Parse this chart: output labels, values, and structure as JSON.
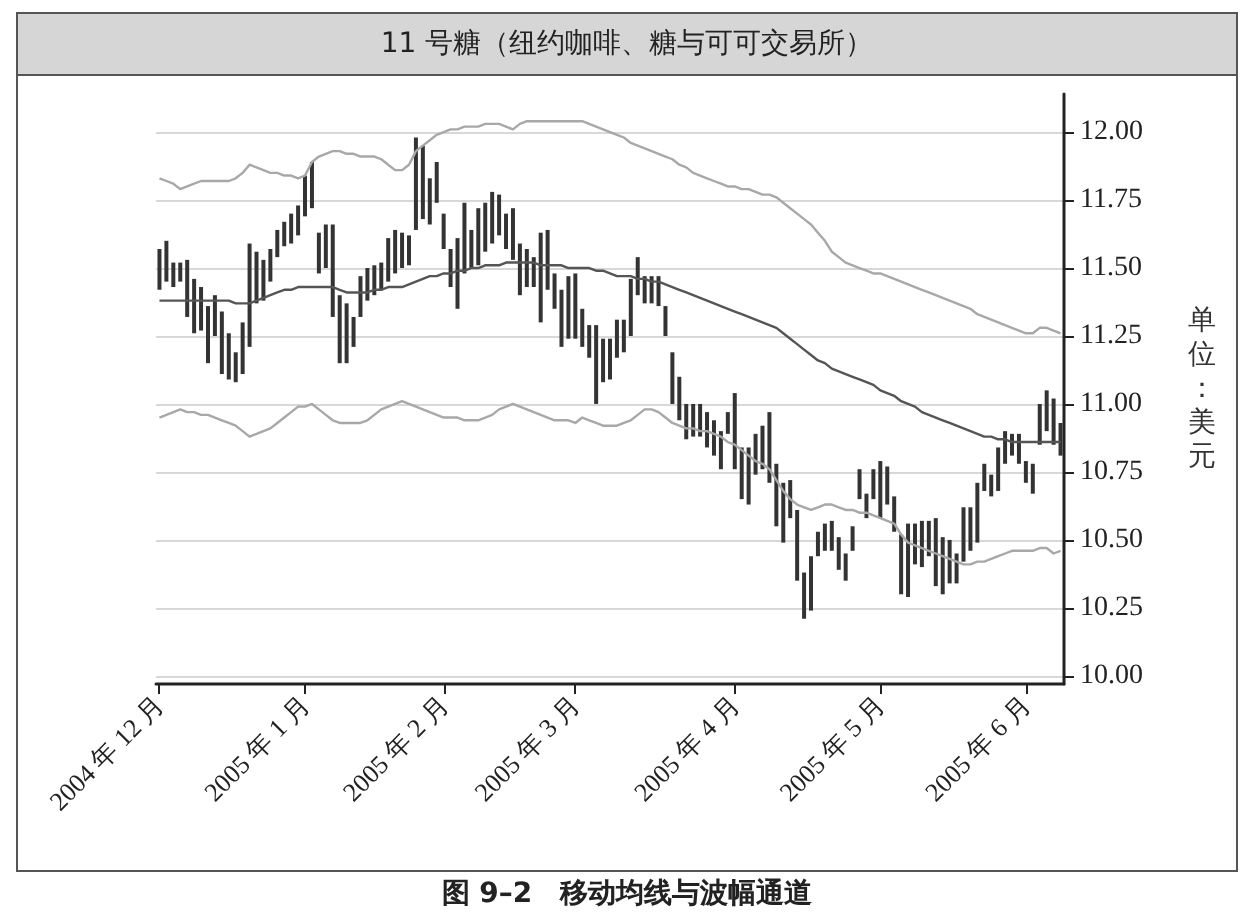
{
  "chart_data": {
    "type": "bar",
    "title": "11 号糖（纽约咖啡、糖与可可交易所）",
    "ylabel": "单位：美元",
    "annotations": [
      "图 9–2　移动均线与波幅通道"
    ],
    "categories": [
      "2004 年 12 月",
      null,
      null,
      null,
      null,
      null,
      null,
      null,
      null,
      null,
      null,
      null,
      null,
      null,
      null,
      null,
      null,
      null,
      null,
      null,
      null,
      "2005 年 1 月",
      null,
      null,
      null,
      null,
      null,
      null,
      null,
      null,
      null,
      null,
      null,
      null,
      null,
      null,
      null,
      null,
      null,
      null,
      null,
      "2005 年 2 月",
      null,
      null,
      null,
      null,
      null,
      null,
      null,
      null,
      null,
      null,
      null,
      null,
      null,
      null,
      null,
      null,
      null,
      null,
      "2005 年 3 月",
      null,
      null,
      null,
      null,
      null,
      null,
      null,
      null,
      null,
      null,
      null,
      null,
      null,
      null,
      null,
      null,
      null,
      null,
      null,
      null,
      null,
      null,
      "2005 年 4 月",
      null,
      null,
      null,
      null,
      null,
      null,
      null,
      null,
      null,
      null,
      null,
      null,
      null,
      null,
      null,
      null,
      null,
      null,
      null,
      null,
      "2005 年 5 月",
      null,
      null,
      null,
      null,
      null,
      null,
      null,
      null,
      null,
      null,
      null,
      null,
      null,
      null,
      null,
      null,
      null,
      null,
      null,
      null,
      "2005 年 6 月",
      null,
      null,
      null,
      null,
      null
    ],
    "series": [
      {
        "color": "#333333",
        "values": [
          0.15,
          0.15,
          0.09,
          0.07,
          0.21,
          0.2,
          0.16,
          0.21,
          0.15,
          0.23,
          0.17,
          0.11,
          0.19,
          0.38,
          0.19,
          0.15,
          0.12,
          0.1,
          0.09,
          0.11,
          0.11,
          0.15,
          0.17,
          0.15,
          0.16,
          0.34,
          0.25,
          0.22,
          0.11,
          0.15,
          0.12,
          0.11,
          0.1,
          0.16,
          0.16,
          0.13,
          0.11,
          0.34,
          0.27,
          0.17,
          0.15,
          0.13,
          0.14,
          0.26,
          0.26,
          0.14,
          0.21,
          0.18,
          0.19,
          0.15,
          0.13,
          0.19,
          0.19,
          0.14,
          0.11,
          0.33,
          0.22,
          0.13,
          0.21,
          0.23,
          0.24,
          0.14,
          0.12,
          0.29,
          0.16,
          0.15,
          0.14,
          0.12,
          0.21,
          0.14,
          0.1,
          0.1,
          0.11,
          0.11,
          0.19,
          0.16,
          0.13,
          0.12,
          0.12,
          0.13,
          0.13,
          0.14,
          0.08,
          0.28,
          0.19,
          0.21,
          0.15,
          0.16,
          0.26,
          0.23,
          0.22,
          0.14,
          0.26,
          0.17,
          0.2,
          0.09,
          0.1,
          0.11,
          0.12,
          0.1,
          0.09,
          0.11,
          0.09,
          0.11,
          0.21,
          0.14,
          0.13,
          0.22,
          0.27,
          0.15,
          0.17,
          0.13,
          0.25,
          0.21,
          0.16,
          0.11,
          0.2,
          0.16,
          0.22,
          0.1,
          0.08,
          0.16,
          0.12,
          0.08,
          0.11,
          0.08,
          0.11,
          0.15,
          0.15,
          0.17,
          0.12
        ],
        "base": [
          11.42,
          11.45,
          11.43,
          11.45,
          11.32,
          11.26,
          11.27,
          11.15,
          11.25,
          11.11,
          11.09,
          11.08,
          11.11,
          11.21,
          11.37,
          11.38,
          11.45,
          11.54,
          11.58,
          11.59,
          11.62,
          11.69,
          11.72,
          11.48,
          11.5,
          11.32,
          11.15,
          11.15,
          11.21,
          11.32,
          11.38,
          11.4,
          11.42,
          11.45,
          11.48,
          11.5,
          11.51,
          11.64,
          11.68,
          11.66,
          11.74,
          11.57,
          11.43,
          11.35,
          11.48,
          11.5,
          11.51,
          11.56,
          11.59,
          11.62,
          11.57,
          11.53,
          11.4,
          11.43,
          11.43,
          11.3,
          11.42,
          11.35,
          11.21,
          11.24,
          11.24,
          11.21,
          11.17,
          11.0,
          11.08,
          11.09,
          11.17,
          11.19,
          11.25,
          11.4,
          11.37,
          11.37,
          11.36,
          11.25,
          11.0,
          10.94,
          10.87,
          10.88,
          10.88,
          10.84,
          10.81,
          10.76,
          10.89,
          10.76,
          10.65,
          10.63,
          10.74,
          10.76,
          10.71,
          10.55,
          10.49,
          10.58,
          10.35,
          10.21,
          10.24,
          10.44,
          10.46,
          10.46,
          10.39,
          10.35,
          10.46,
          10.65,
          10.58,
          10.65,
          10.58,
          10.63,
          10.53,
          10.3,
          10.29,
          10.41,
          10.4,
          10.44,
          10.33,
          10.3,
          10.34,
          10.34,
          10.42,
          10.46,
          10.49,
          10.68,
          10.66,
          10.68,
          10.78,
          10.81,
          10.78,
          10.71,
          10.67,
          10.85,
          10.9,
          10.85,
          10.81
        ]
      },
      {
        "type": "line",
        "color": "#555555",
        "values": [
          11.38,
          11.38,
          11.38,
          11.38,
          11.38,
          11.38,
          11.38,
          11.38,
          11.38,
          11.38,
          11.38,
          11.37,
          11.37,
          11.37,
          11.38,
          11.39,
          11.4,
          11.41,
          11.42,
          11.42,
          11.43,
          11.43,
          11.43,
          11.43,
          11.43,
          11.43,
          11.42,
          11.41,
          11.41,
          11.41,
          11.41,
          11.42,
          11.42,
          11.43,
          11.43,
          11.43,
          11.44,
          11.45,
          11.46,
          11.47,
          11.47,
          11.48,
          11.48,
          11.49,
          11.49,
          11.5,
          11.5,
          11.51,
          11.51,
          11.51,
          11.52,
          11.52,
          11.52,
          11.52,
          11.52,
          11.51,
          11.51,
          11.51,
          11.51,
          11.5,
          11.5,
          11.5,
          11.5,
          11.49,
          11.49,
          11.48,
          11.47,
          11.47,
          11.47,
          11.46,
          11.46,
          11.45,
          11.45,
          11.44,
          11.43,
          11.42,
          11.41,
          11.4,
          11.39,
          11.38,
          11.37,
          11.36,
          11.35,
          11.34,
          11.33,
          11.32,
          11.31,
          11.3,
          11.29,
          11.28,
          11.26,
          11.24,
          11.22,
          11.2,
          11.18,
          11.16,
          11.15,
          11.13,
          11.12,
          11.11,
          11.1,
          11.09,
          11.08,
          11.07,
          11.05,
          11.04,
          11.03,
          11.01,
          11.0,
          10.99,
          10.97,
          10.96,
          10.95,
          10.94,
          10.93,
          10.92,
          10.91,
          10.9,
          10.89,
          10.88,
          10.88,
          10.87,
          10.87,
          10.86,
          10.86,
          10.86,
          10.86,
          10.86,
          10.86,
          10.86,
          10.86
        ]
      },
      {
        "type": "line",
        "color": "#a8a8a8",
        "values": [
          11.83,
          11.82,
          11.81,
          11.79,
          11.8,
          11.81,
          11.82,
          11.82,
          11.82,
          11.82,
          11.82,
          11.83,
          11.85,
          11.88,
          11.87,
          11.86,
          11.85,
          11.85,
          11.84,
          11.84,
          11.83,
          11.84,
          11.89,
          11.91,
          11.92,
          11.93,
          11.93,
          11.92,
          11.92,
          11.91,
          11.91,
          11.91,
          11.9,
          11.88,
          11.86,
          11.86,
          11.88,
          11.93,
          11.95,
          11.97,
          11.99,
          12.0,
          12.01,
          12.01,
          12.02,
          12.02,
          12.02,
          12.03,
          12.03,
          12.03,
          12.02,
          12.01,
          12.03,
          12.04,
          12.04,
          12.04,
          12.04,
          12.04,
          12.04,
          12.04,
          12.04,
          12.04,
          12.03,
          12.02,
          12.01,
          12.0,
          11.99,
          11.98,
          11.96,
          11.95,
          11.94,
          11.93,
          11.92,
          11.91,
          11.9,
          11.88,
          11.87,
          11.85,
          11.84,
          11.83,
          11.82,
          11.81,
          11.8,
          11.8,
          11.79,
          11.79,
          11.78,
          11.77,
          11.77,
          11.76,
          11.74,
          11.72,
          11.7,
          11.68,
          11.66,
          11.63,
          11.6,
          11.56,
          11.54,
          11.52,
          11.51,
          11.5,
          11.49,
          11.48,
          11.48,
          11.47,
          11.46,
          11.45,
          11.44,
          11.43,
          11.42,
          11.41,
          11.4,
          11.39,
          11.38,
          11.37,
          11.36,
          11.35,
          11.33,
          11.32,
          11.31,
          11.3,
          11.29,
          11.28,
          11.27,
          11.26,
          11.26,
          11.28,
          11.28,
          11.27,
          11.26
        ]
      },
      {
        "type": "line",
        "color": "#a8a8a8",
        "values": [
          10.95,
          10.96,
          10.97,
          10.98,
          10.97,
          10.97,
          10.96,
          10.96,
          10.95,
          10.94,
          10.93,
          10.92,
          10.9,
          10.88,
          10.89,
          10.9,
          10.91,
          10.93,
          10.95,
          10.97,
          10.99,
          10.99,
          11.0,
          10.98,
          10.96,
          10.94,
          10.93,
          10.93,
          10.93,
          10.93,
          10.94,
          10.96,
          10.98,
          10.99,
          11.0,
          11.01,
          11.0,
          10.99,
          10.98,
          10.97,
          10.96,
          10.95,
          10.95,
          10.95,
          10.94,
          10.94,
          10.94,
          10.95,
          10.96,
          10.98,
          10.99,
          11.0,
          10.99,
          10.98,
          10.97,
          10.96,
          10.95,
          10.94,
          10.94,
          10.94,
          10.93,
          10.95,
          10.94,
          10.93,
          10.92,
          10.92,
          10.92,
          10.93,
          10.94,
          10.96,
          10.98,
          10.98,
          10.97,
          10.95,
          10.93,
          10.92,
          10.91,
          10.91,
          10.9,
          10.9,
          10.89,
          10.88,
          10.86,
          10.85,
          10.83,
          10.81,
          10.79,
          10.78,
          10.76,
          10.72,
          10.68,
          10.65,
          10.63,
          10.62,
          10.61,
          10.62,
          10.63,
          10.63,
          10.62,
          10.61,
          10.61,
          10.6,
          10.6,
          10.59,
          10.58,
          10.57,
          10.56,
          10.52,
          10.49,
          10.48,
          10.47,
          10.46,
          10.45,
          10.44,
          10.43,
          10.42,
          10.41,
          10.41,
          10.42,
          10.42,
          10.43,
          10.44,
          10.45,
          10.46,
          10.46,
          10.46,
          10.46,
          10.47,
          10.47,
          10.45,
          10.46
        ]
      }
    ],
    "ylim": [
      9.97,
      12.14
    ],
    "yticks": [
      {
        "value": 10,
        "label": "10.00"
      },
      {
        "value": 10.25,
        "label": "10.25"
      },
      {
        "value": 10.5,
        "label": "10.50"
      },
      {
        "value": 10.75,
        "label": "10.75"
      },
      {
        "value": 11,
        "label": "11.00"
      },
      {
        "value": 11.25,
        "label": "11.25"
      },
      {
        "value": 11.5,
        "label": "11.50"
      },
      {
        "value": 11.75,
        "label": "11.75"
      },
      {
        "value": 12,
        "label": "12.00"
      }
    ],
    "grid": "y",
    "marker": "none",
    "line_style": "solid"
  }
}
